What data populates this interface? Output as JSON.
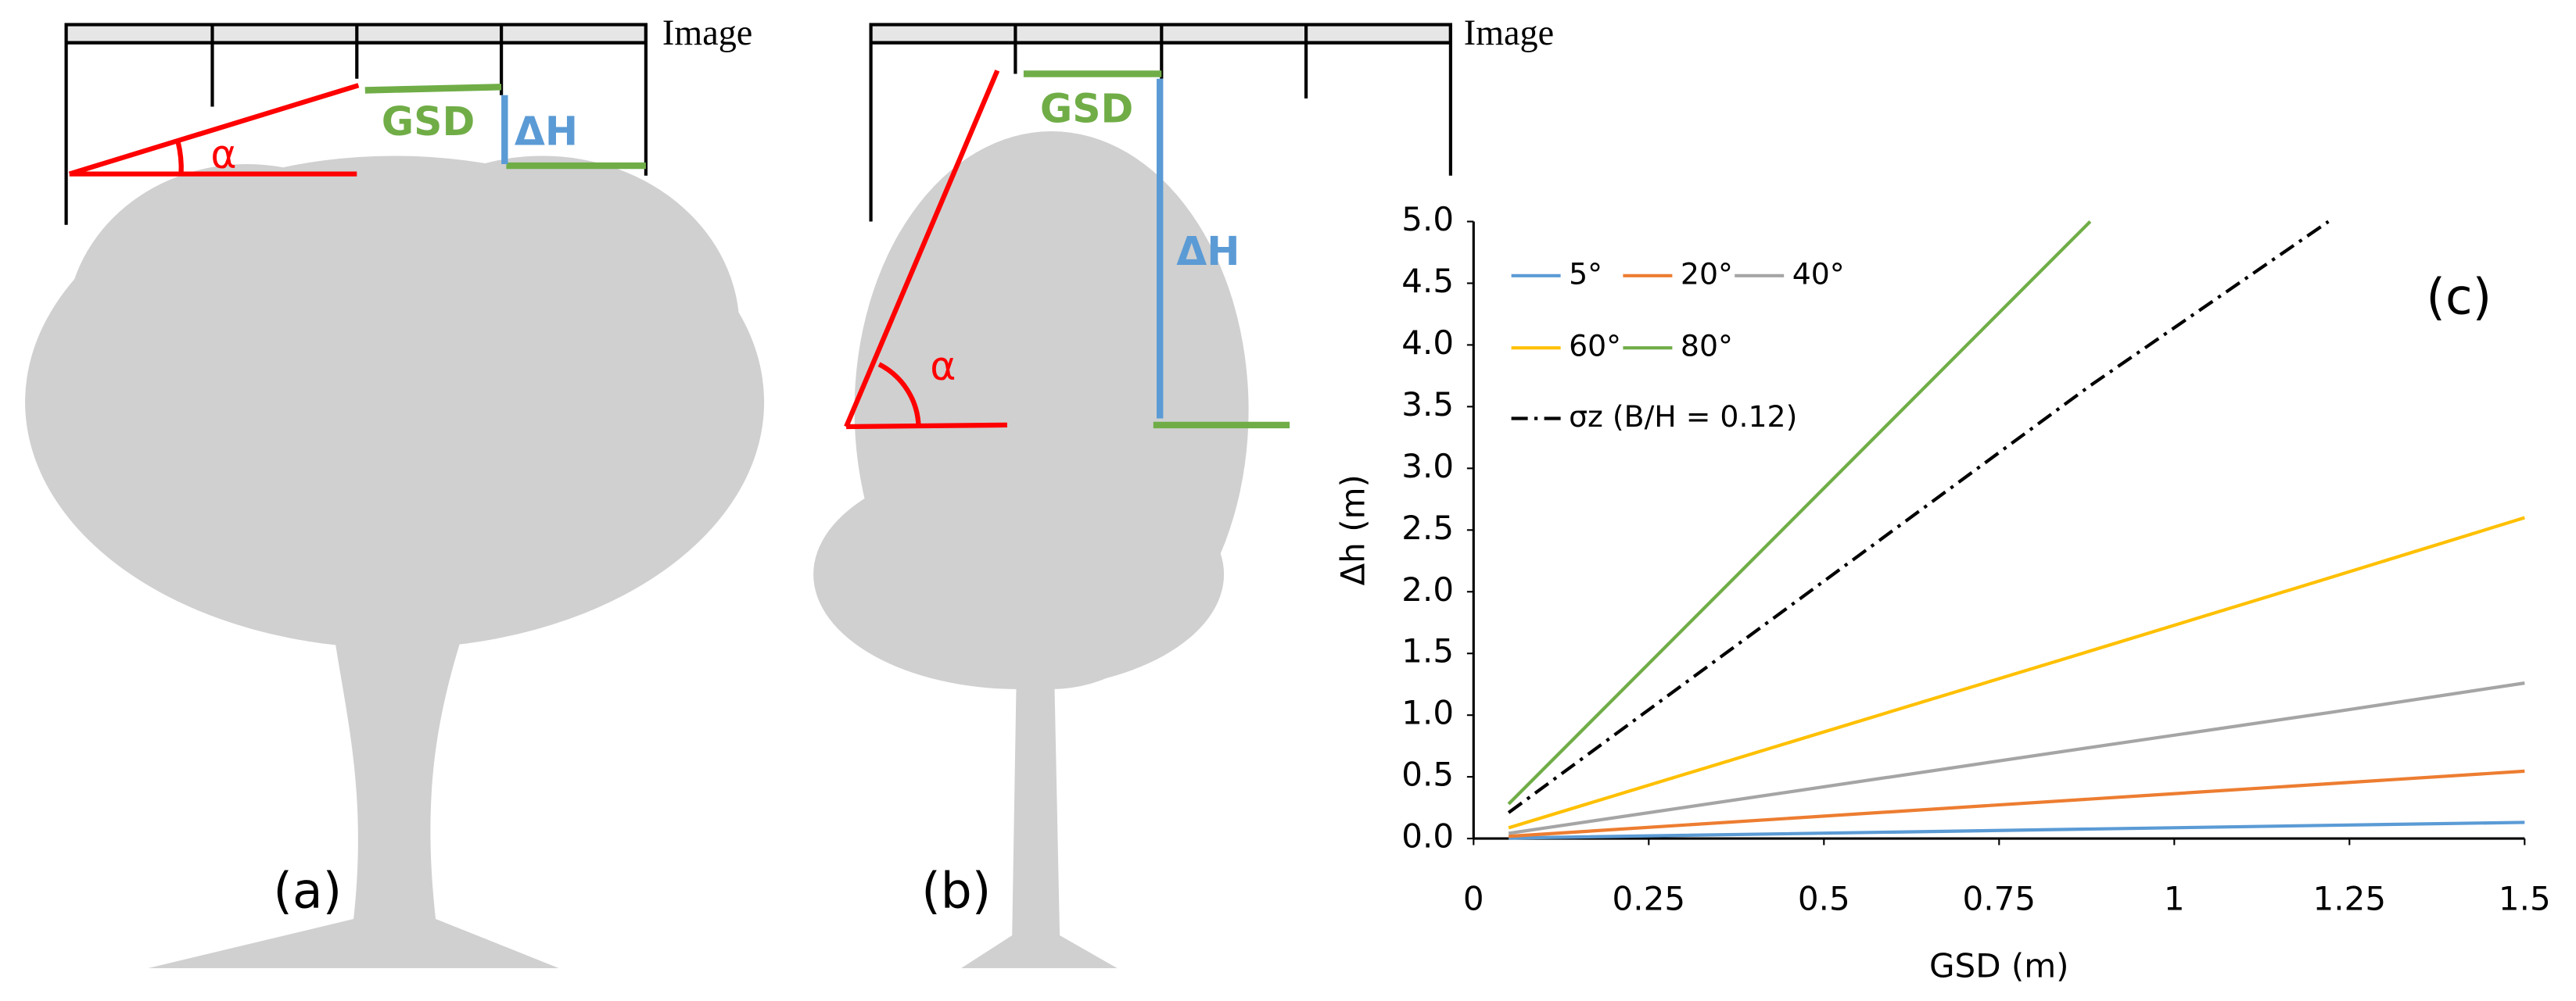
{
  "panels": [
    {
      "label": "(a)",
      "image_label": "Image",
      "gsd_label": "GSD",
      "dh_label": "ΔH",
      "angle_label": "α"
    },
    {
      "label": "(b)",
      "image_label": "Image",
      "gsd_label": "GSD",
      "dh_label": "ΔH",
      "angle_label": "α"
    }
  ],
  "chart_data": {
    "type": "line",
    "panel_label": "(c)",
    "x_label": "GSD (m)",
    "y_label": "Δh (m)",
    "x": [
      0.05,
      0.88,
      1.22,
      1.5
    ],
    "series": [
      {
        "name": "5°",
        "color": "#5b9bd5",
        "values": [
          0.004,
          0.077,
          0.107,
          0.131
        ]
      },
      {
        "name": "20°",
        "color": "#ed7d31",
        "values": [
          0.018,
          0.32,
          0.444,
          0.546
        ]
      },
      {
        "name": "40°",
        "color": "#a5a5a5",
        "values": [
          0.042,
          0.738,
          1.02,
          1.26
        ]
      },
      {
        "name": "60°",
        "color": "#ffc000",
        "values": [
          0.087,
          1.52,
          2.11,
          2.6
        ]
      },
      {
        "name": "80°",
        "color": "#70ad47",
        "values": [
          0.28,
          5.0,
          null,
          null
        ]
      },
      {
        "name": "σz (B/H = 0.12)",
        "color": "#000000",
        "dash": "dashdot",
        "values": [
          0.21,
          3.67,
          5.0,
          null
        ]
      }
    ],
    "xlim": [
      0,
      1.5
    ],
    "xticks": [
      0,
      0.25,
      0.5,
      0.75,
      1,
      1.25,
      1.5
    ],
    "ylim": [
      0,
      5
    ],
    "yticks": [
      {
        "value": 0,
        "label": "0.0"
      },
      0.5,
      {
        "value": 1,
        "label": "1.0"
      },
      1.5,
      {
        "value": 2,
        "label": "2.0"
      },
      2.5,
      {
        "value": 3,
        "label": "3.0"
      },
      3.5,
      {
        "value": 4,
        "label": "4.0"
      },
      4.5,
      {
        "value": 5,
        "label": "5.0"
      }
    ],
    "grid": false
  }
}
